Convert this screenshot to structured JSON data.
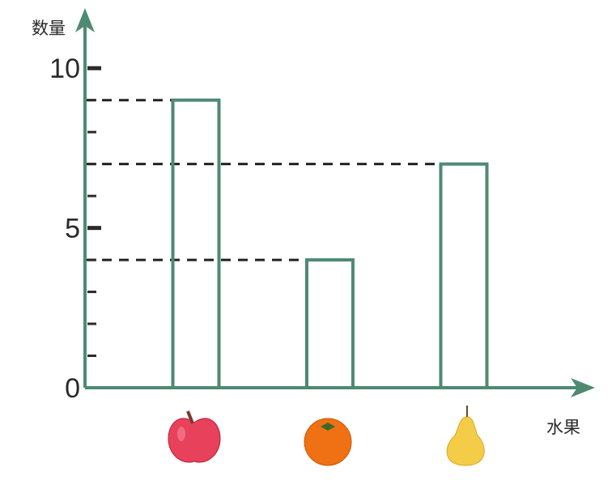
{
  "chart_data": {
    "type": "bar",
    "y_label": "数量",
    "x_label": "水果",
    "categories": [
      null,
      null,
      null
    ],
    "values": [
      9,
      4,
      7
    ],
    "color": "#4e8a72",
    "ylim": [
      0,
      11.5
    ],
    "yticks": [
      0,
      5,
      10
    ],
    "yminor": [
      1,
      2,
      3,
      4,
      6,
      7,
      8,
      9
    ]
  }
}
